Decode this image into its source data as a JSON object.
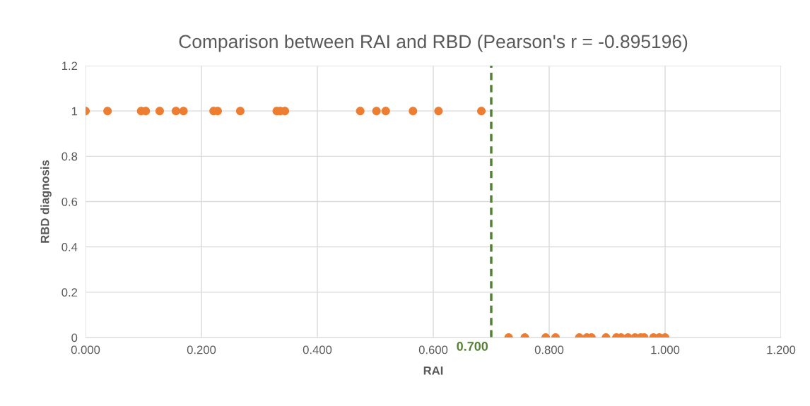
{
  "chart_data": {
    "type": "scatter",
    "title": "Comparison between RAI and RBD (Pearson's r = -0.895196)",
    "xlabel": "RAI",
    "ylabel": "RBD diagnosis",
    "series": [
      {
        "color": "#ed7d31",
        "x": [
          0.0,
          0.038,
          0.096,
          0.104,
          0.128,
          0.156,
          0.169,
          0.221,
          0.228,
          0.267,
          0.33,
          0.336,
          0.344,
          0.474,
          0.502,
          0.518,
          0.565,
          0.609,
          0.683,
          0.73,
          0.758,
          0.794,
          0.811,
          0.852,
          0.865,
          0.873,
          0.898,
          0.916,
          0.924,
          0.936,
          0.948,
          0.958,
          0.964,
          0.98,
          0.99,
          1.0
        ],
        "values": [
          1,
          1,
          1,
          1,
          1,
          1,
          1,
          1,
          1,
          1,
          1,
          1,
          1,
          1,
          1,
          1,
          1,
          1,
          1,
          0,
          0,
          0,
          0,
          0,
          0,
          0,
          0,
          0,
          0,
          0,
          0,
          0,
          0,
          0,
          0,
          0
        ]
      }
    ],
    "marker": "circle",
    "xlim": [
      0,
      1.2
    ],
    "xticks": [
      {
        "value": 0,
        "label": "0.000"
      },
      {
        "value": 0.2,
        "label": "0.200"
      },
      {
        "value": 0.4,
        "label": "0.400"
      },
      {
        "value": 0.6,
        "label": "0.600"
      },
      {
        "value": 0.8,
        "label": "0.800"
      },
      {
        "value": 1.0,
        "label": "1.000"
      },
      {
        "value": 1.2,
        "label": "1.200"
      }
    ],
    "ylim": [
      0,
      1.2
    ],
    "yticks": [
      0,
      0.2,
      0.4,
      0.6,
      0.8,
      1,
      1.2
    ],
    "grid": true,
    "ref_lines": [
      {
        "axis": "x",
        "value": 0.7,
        "label": "0.700",
        "color": "#548235",
        "line_style": "dashed"
      }
    ]
  }
}
